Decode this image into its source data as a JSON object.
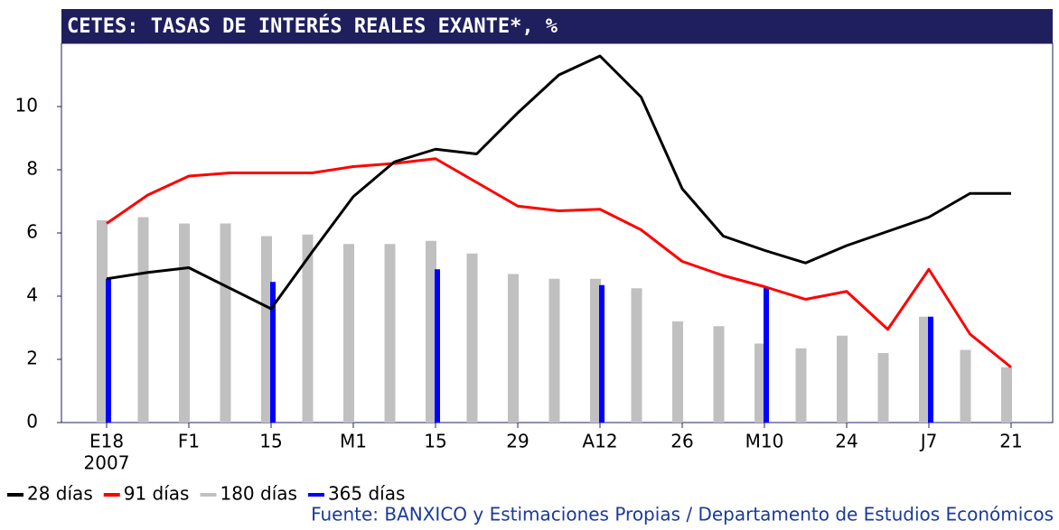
{
  "chart_data": {
    "type": "bar-line",
    "title": "CETES: TASAS DE INTERÉS REALES EXANTE*, %",
    "categories": [
      "E18",
      null,
      "F1",
      null,
      "15",
      null,
      "M1",
      null,
      "15",
      null,
      "29",
      null,
      "A12",
      null,
      "26",
      null,
      "M10",
      null,
      "24",
      null,
      "J7",
      null,
      "21"
    ],
    "year_label": "2007",
    "series": [
      {
        "name": "28 días",
        "kind": "line",
        "color": "#000000",
        "values": [
          4.55,
          4.75,
          4.9,
          4.25,
          3.6,
          5.4,
          7.15,
          8.25,
          8.65,
          8.5,
          9.8,
          11.0,
          11.6,
          10.3,
          7.4,
          5.9,
          5.45,
          5.05,
          5.6,
          6.05,
          6.5,
          7.25,
          7.25
        ]
      },
      {
        "name": "91 días",
        "kind": "line",
        "color": "#ff0000",
        "values": [
          6.3,
          7.2,
          7.8,
          7.9,
          7.9,
          7.9,
          8.1,
          8.2,
          8.35,
          7.6,
          6.85,
          6.7,
          6.75,
          6.1,
          5.1,
          4.65,
          4.3,
          3.9,
          4.15,
          2.95,
          4.85,
          2.8,
          1.75
        ]
      },
      {
        "name": "180 días",
        "kind": "bar",
        "color": "#c0c0c0",
        "values": [
          6.4,
          6.5,
          6.3,
          6.3,
          5.9,
          5.95,
          5.65,
          5.65,
          5.75,
          5.35,
          4.7,
          4.55,
          4.55,
          4.25,
          3.2,
          3.05,
          2.5,
          2.35,
          2.75,
          2.2,
          3.35,
          2.3,
          1.75
        ]
      },
      {
        "name": "365 días",
        "kind": "bar",
        "color": "#0000ff",
        "values": [
          4.55,
          null,
          null,
          null,
          4.45,
          null,
          null,
          null,
          4.85,
          null,
          null,
          null,
          4.35,
          null,
          null,
          null,
          4.3,
          null,
          null,
          null,
          3.35,
          null,
          null
        ]
      }
    ],
    "ylim": [
      0,
      12
    ],
    "yticks": [
      0,
      2,
      4,
      6,
      8,
      10
    ],
    "source": "Fuente: BANXICO y Estimaciones Propias / Departamento de Estudios Económicos"
  }
}
